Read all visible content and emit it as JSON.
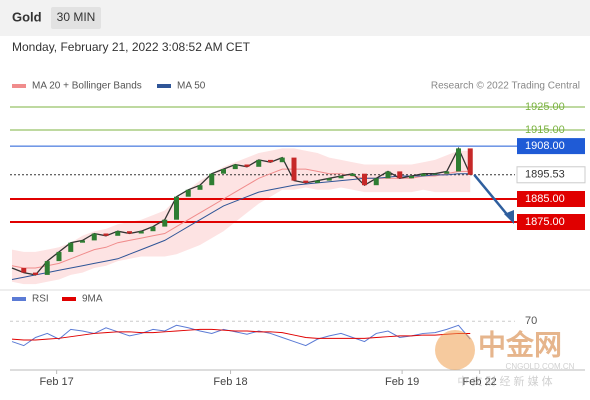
{
  "header": {
    "title": "Gold",
    "timeframe": "30 MIN",
    "timestamp": "Monday, February 21, 2022 3:08:52 AM CET",
    "credit": "Research © 2022 Trading Central"
  },
  "watermark": {
    "logo": "中金网",
    "domain": "CNGOLD.COM.CN",
    "slogan": "中 文 财 经 新 媒 体"
  },
  "chart_data": [
    {
      "type": "line",
      "xlim": [
        0,
        40
      ],
      "xticks": [
        {
          "value": 3.8,
          "label": "Feb 17"
        },
        {
          "value": 18.6,
          "label": "Feb 18"
        },
        {
          "value": 33.2,
          "label": "Feb 19"
        },
        {
          "value": 39.8,
          "label": "Feb 22"
        }
      ],
      "ylim": [
        1850,
        1930
      ],
      "values": [
        1855,
        1853,
        1852,
        1858,
        1862,
        1866,
        1867,
        1870,
        1869,
        1871,
        1870,
        1871,
        1873,
        1876,
        1886,
        1889,
        1891,
        1896,
        1898,
        1900,
        1899,
        1902,
        1901,
        1903,
        1893,
        1892,
        1893,
        1894,
        1895,
        1896,
        1891,
        1894,
        1897,
        1894,
        1895,
        1896,
        1896,
        1897,
        1907,
        1895.53
      ],
      "color": "#333333",
      "series": [
        {
          "name": "MA 20 + Bollinger Bands",
          "color": "#f08c8c",
          "band_color": "#fde3e3",
          "values": [
            1856,
            1855,
            1855,
            1856,
            1857,
            1859,
            1861,
            1863,
            1864,
            1866,
            1867,
            1868,
            1869,
            1870,
            1873,
            1876,
            1879,
            1882,
            1885,
            1888,
            1891,
            1894,
            1896,
            1898,
            1898,
            1898,
            1897,
            1896,
            1896,
            1895,
            1894,
            1894,
            1894,
            1894,
            1894,
            1895,
            1895,
            1896,
            1897,
            1897
          ],
          "upper": [
            1863,
            1862,
            1862,
            1863,
            1864,
            1866,
            1869,
            1871,
            1872,
            1874,
            1875,
            1876,
            1878,
            1880,
            1885,
            1889,
            1893,
            1896,
            1899,
            1901,
            1903,
            1905,
            1906,
            1907,
            1907,
            1906,
            1905,
            1903,
            1902,
            1901,
            1900,
            1900,
            1900,
            1900,
            1900,
            1901,
            1902,
            1904,
            1906,
            1906
          ],
          "lower": [
            1849,
            1848,
            1848,
            1849,
            1850,
            1852,
            1853,
            1855,
            1856,
            1858,
            1859,
            1860,
            1860,
            1860,
            1861,
            1863,
            1865,
            1868,
            1871,
            1875,
            1879,
            1883,
            1886,
            1889,
            1889,
            1890,
            1889,
            1889,
            1890,
            1889,
            1888,
            1888,
            1888,
            1888,
            1888,
            1889,
            1888,
            1888,
            1888,
            1888
          ]
        },
        {
          "name": "MA 50",
          "color": "#2f5597",
          "values": [
            1850,
            1851,
            1852,
            1853,
            1854,
            1855,
            1856,
            1857,
            1858,
            1859,
            1861,
            1863,
            1865,
            1867,
            1870,
            1873,
            1876,
            1879,
            1882,
            1884,
            1886,
            1888,
            1889,
            1890,
            1891,
            1891.5,
            1892,
            1892.5,
            1893,
            1893.5,
            1894,
            1894,
            1894.5,
            1895,
            1895,
            1895,
            1895.5,
            1895.5,
            1896,
            1896
          ]
        }
      ],
      "levels": [
        {
          "value": 1925,
          "label": "1925.00",
          "color": "#7cb342",
          "style": "plain"
        },
        {
          "value": 1915,
          "label": "1915.00",
          "color": "#7cb342",
          "style": "plain"
        },
        {
          "value": 1908,
          "label": "1908.00",
          "color": "#1f5bd6",
          "style": "box"
        },
        {
          "value": 1895.53,
          "label": "1895.53",
          "color": "#333333",
          "style": "current"
        },
        {
          "value": 1885,
          "label": "1885.00",
          "color": "#e00000",
          "style": "box"
        },
        {
          "value": 1875,
          "label": "1875.00",
          "color": "#e00000",
          "style": "box"
        }
      ],
      "arrow_color": "#2f5f9e"
    },
    {
      "type": "line",
      "xlim": [
        0,
        40
      ],
      "ylim": [
        10,
        90
      ],
      "yticks": [
        70
      ],
      "series": [
        {
          "name": "RSI",
          "color": "#5b7bd5",
          "values": [
            45,
            40,
            50,
            55,
            48,
            60,
            58,
            55,
            62,
            57,
            52,
            55,
            60,
            58,
            65,
            62,
            58,
            55,
            60,
            57,
            54,
            58,
            55,
            50,
            45,
            40,
            48,
            52,
            55,
            50,
            45,
            55,
            58,
            50,
            52,
            55,
            56,
            60,
            65,
            48
          ]
        },
        {
          "name": "9MA",
          "color": "#e00000",
          "values": [
            48,
            47,
            47,
            48,
            49,
            51,
            53,
            55,
            56,
            57,
            57,
            56,
            56,
            57,
            58,
            59,
            60,
            60,
            59,
            58,
            58,
            57,
            57,
            56,
            53,
            50,
            49,
            49,
            49,
            49,
            49,
            50,
            51,
            52,
            52,
            53,
            53,
            54,
            55,
            55
          ]
        }
      ]
    }
  ]
}
